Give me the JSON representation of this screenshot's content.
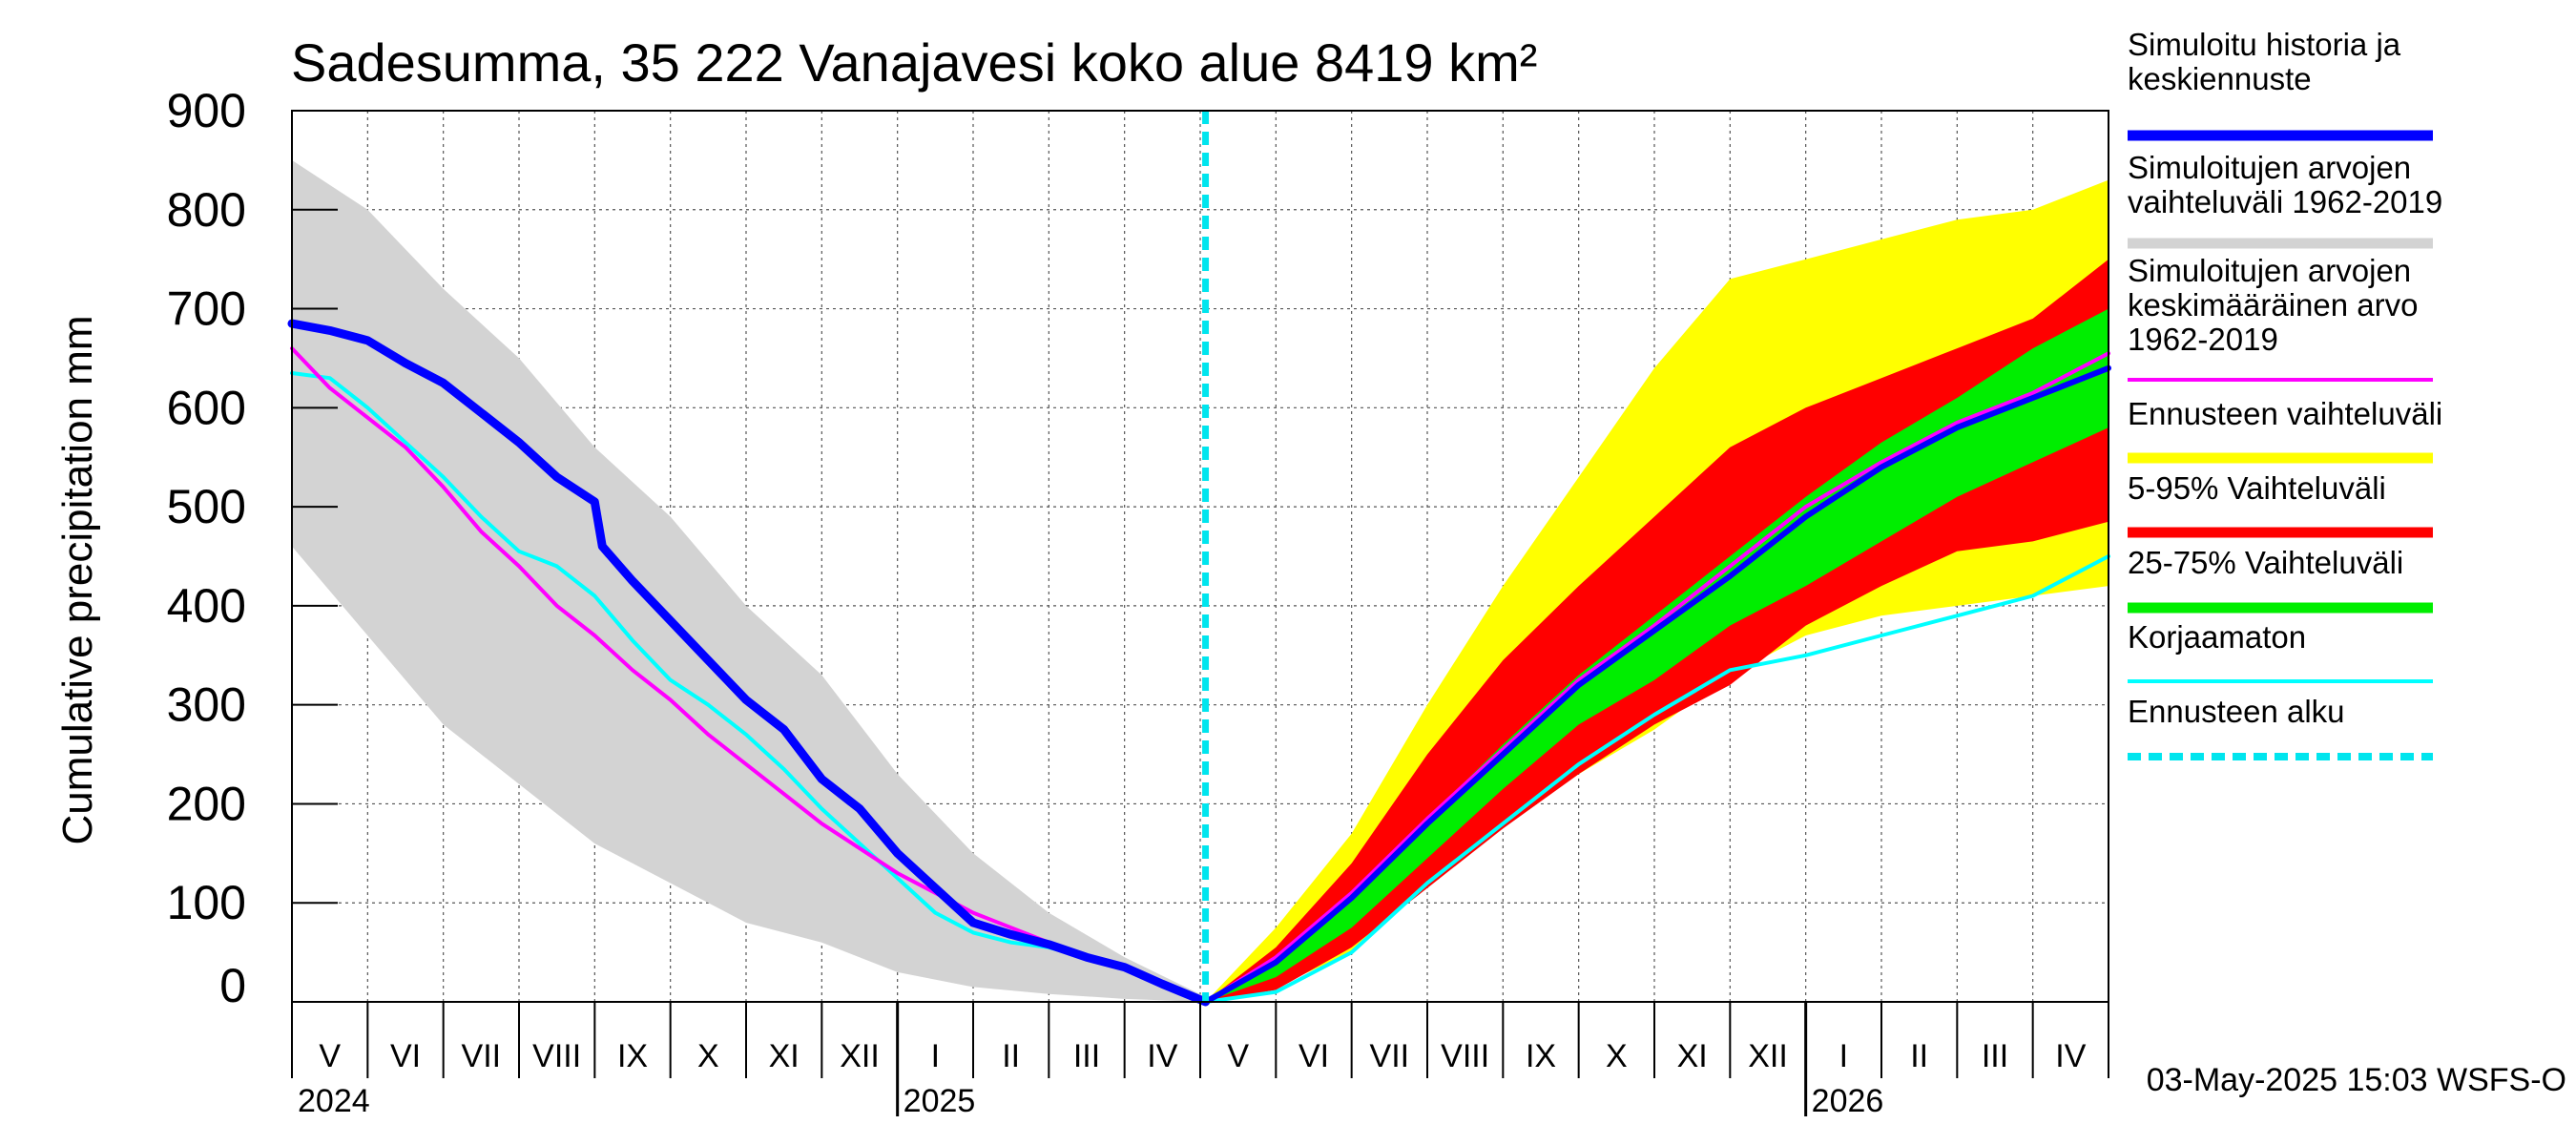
{
  "chart_data": {
    "type": "area",
    "title": "Sadesumma, 35 222 Vanajavesi koko alue 8419 km²",
    "ylabel": "Cumulative precipitation   mm",
    "ylim": [
      0,
      900
    ],
    "yticks": [
      0,
      100,
      200,
      300,
      400,
      500,
      600,
      700,
      800,
      900
    ],
    "xlim": [
      0,
      24
    ],
    "x_unit": "months since 1 May 2024",
    "month_labels": [
      "V",
      "VI",
      "VII",
      "VIII",
      "IX",
      "X",
      "XI",
      "XII",
      "I",
      "II",
      "III",
      "IV",
      "V",
      "VI",
      "VII",
      "VIII",
      "IX",
      "X",
      "XI",
      "XII",
      "I",
      "II",
      "III",
      "IV"
    ],
    "year_labels": [
      {
        "x": 0,
        "label": "2024"
      },
      {
        "x": 8,
        "label": "2025"
      },
      {
        "x": 20,
        "label": "2026"
      }
    ],
    "year_boundaries": [
      8,
      20
    ],
    "forecast_start_x": 12.07,
    "footer": "03-May-2025 15:03 WSFS-O",
    "colors": {
      "hist_range": "#d3d3d3",
      "forecast_range": "#ffff00",
      "p5_95": "#ff0000",
      "p25_75": "#00ee00",
      "mean": "#ff00ff",
      "simulated": "#0000ff",
      "uncorrected": "#00ffff",
      "forecast_start": "#00e5ee"
    },
    "legend": [
      {
        "label": "Simuloitu historia ja\nkeskiennuste",
        "color": "#0000ff",
        "style": "thick"
      },
      {
        "label": "Simuloitujen arvojen\nvaihteluväli 1962-2019",
        "color": "#d3d3d3",
        "style": "thick"
      },
      {
        "label": "Simuloitujen arvojen\nkeskimääräinen arvo\n   1962-2019",
        "color": "#ff00ff",
        "style": "thin"
      },
      {
        "label": "Ennusteen vaihteluväli",
        "color": "#ffff00",
        "style": "thick"
      },
      {
        "label": "5-95% Vaihteluväli",
        "color": "#ff0000",
        "style": "thick"
      },
      {
        "label": "25-75% Vaihteluväli",
        "color": "#00ee00",
        "style": "thick"
      },
      {
        "label": "Korjaamaton",
        "color": "#00ffff",
        "style": "thin"
      },
      {
        "label": "Ennusteen alku",
        "color": "#00e5ee",
        "style": "dashed"
      }
    ],
    "series": {
      "hist_range": {
        "x": [
          0,
          1,
          2,
          3,
          4,
          5,
          6,
          7,
          8,
          9,
          10,
          11,
          12.07
        ],
        "upper": [
          850,
          800,
          720,
          650,
          560,
          490,
          400,
          330,
          230,
          150,
          90,
          45,
          5
        ],
        "lower": [
          460,
          370,
          280,
          220,
          160,
          120,
          80,
          60,
          30,
          15,
          8,
          3,
          0
        ]
      },
      "simulated": {
        "x": [
          0,
          0.5,
          1,
          1.5,
          2,
          2.5,
          3,
          3.5,
          4,
          4.1,
          4.5,
          5,
          5.5,
          6,
          6.5,
          7,
          7.5,
          8,
          8.5,
          9,
          9.5,
          10,
          10.5,
          11,
          11.5,
          12.07
        ],
        "y": [
          685,
          678,
          668,
          645,
          625,
          595,
          565,
          530,
          505,
          460,
          425,
          385,
          345,
          305,
          275,
          225,
          195,
          150,
          115,
          80,
          68,
          58,
          45,
          35,
          18,
          0
        ]
      },
      "uncorrected": {
        "x": [
          0,
          0.5,
          1,
          1.5,
          2,
          2.5,
          3,
          3.5,
          4,
          4.5,
          5,
          5.5,
          6,
          6.5,
          7,
          7.5,
          8,
          8.5,
          9,
          9.5,
          10,
          10.5,
          11,
          11.5,
          12.07
        ],
        "y": [
          635,
          630,
          600,
          565,
          530,
          490,
          455,
          440,
          410,
          365,
          325,
          300,
          270,
          235,
          195,
          160,
          125,
          90,
          70,
          60,
          55,
          45,
          35,
          20,
          0
        ]
      },
      "mean": {
        "x": [
          0,
          0.5,
          1,
          1.5,
          2,
          2.5,
          3,
          3.5,
          4,
          4.5,
          5,
          5.5,
          6,
          6.5,
          7,
          7.5,
          8,
          8.5,
          9,
          9.5,
          10,
          10.5,
          11,
          11.5,
          12.07,
          13,
          14,
          15,
          16,
          17,
          18,
          19,
          20,
          21,
          22,
          23,
          24
        ],
        "y": [
          660,
          620,
          590,
          560,
          520,
          475,
          440,
          400,
          370,
          335,
          305,
          270,
          240,
          210,
          180,
          155,
          130,
          110,
          90,
          75,
          60,
          45,
          35,
          20,
          0,
          45,
          110,
          185,
          255,
          325,
          380,
          440,
          500,
          545,
          585,
          615,
          655
        ]
      },
      "forecast_range": {
        "x": [
          12.07,
          13,
          14,
          15,
          16,
          17,
          18,
          19,
          20,
          21,
          22,
          23,
          24
        ],
        "upper": [
          0,
          75,
          170,
          300,
          420,
          530,
          640,
          730,
          750,
          770,
          790,
          800,
          830
        ],
        "lower": [
          0,
          15,
          50,
          120,
          185,
          230,
          275,
          330,
          370,
          390,
          400,
          410,
          420
        ]
      },
      "p5_95": {
        "x": [
          12.07,
          13,
          14,
          15,
          16,
          17,
          18,
          19,
          20,
          21,
          22,
          23,
          24
        ],
        "upper": [
          0,
          55,
          140,
          250,
          345,
          420,
          490,
          560,
          600,
          630,
          660,
          690,
          750
        ],
        "lower": [
          0,
          12,
          55,
          115,
          175,
          230,
          280,
          320,
          380,
          420,
          455,
          465,
          485
        ]
      },
      "p25_75": {
        "x": [
          12.07,
          13,
          14,
          15,
          16,
          17,
          18,
          19,
          20,
          21,
          22,
          23,
          24
        ],
        "upper": [
          0,
          40,
          110,
          185,
          260,
          330,
          390,
          450,
          510,
          565,
          610,
          660,
          700
        ],
        "lower": [
          0,
          25,
          75,
          145,
          215,
          280,
          325,
          380,
          420,
          465,
          510,
          545,
          580
        ]
      },
      "median": {
        "x": [
          12.07,
          13,
          14,
          15,
          16,
          17,
          18,
          19,
          20,
          21,
          22,
          23,
          24
        ],
        "y": [
          0,
          40,
          105,
          180,
          250,
          320,
          375,
          430,
          490,
          540,
          580,
          610,
          640
        ]
      },
      "forecast_uncorrected": {
        "x": [
          12.07,
          13,
          14,
          15,
          16,
          17,
          18,
          19,
          20,
          21,
          22,
          23,
          24
        ],
        "y": [
          0,
          10,
          50,
          120,
          180,
          240,
          290,
          335,
          350,
          370,
          390,
          410,
          450
        ]
      }
    }
  }
}
